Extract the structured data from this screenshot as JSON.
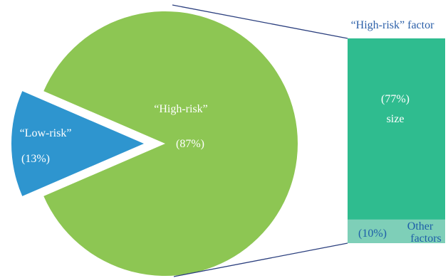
{
  "chart_data": {
    "type": "bar-of-pie",
    "pie": {
      "slices": [
        {
          "label": "“High-risk”",
          "value": 87,
          "value_label": "(87%)",
          "color": "#8DC653"
        },
        {
          "label": "“Low-risk”",
          "value": 13,
          "value_label": "(13%)",
          "color": "#2E95CF",
          "exploded": true
        }
      ]
    },
    "bar": {
      "title": "“High-risk” factor",
      "segments": [
        {
          "label": "size",
          "value": 77,
          "value_label": "(77%)",
          "color": "#2FBC8F"
        },
        {
          "label": "Other factors",
          "label_lines": [
            "Other",
            "factors"
          ],
          "value": 10,
          "value_label": "(10%)",
          "color": "#7ECFB8"
        }
      ]
    },
    "connector_color": "#2B3F7E",
    "title_color": "#2B5FA8",
    "other_label_color": "#1E5FA8"
  }
}
